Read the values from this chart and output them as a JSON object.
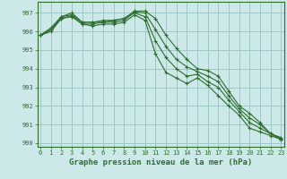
{
  "title": "Graphe pression niveau de la mer (hPa)",
  "background_color": "#cce8e8",
  "grid_color": "#a0c8c8",
  "line_color": "#2d6e2d",
  "x_values": [
    0,
    1,
    2,
    3,
    4,
    5,
    6,
    7,
    8,
    9,
    10,
    11,
    12,
    13,
    14,
    15,
    16,
    17,
    18,
    19,
    20,
    21,
    22,
    23
  ],
  "series": [
    [
      995.8,
      996.1,
      996.8,
      996.9,
      996.5,
      996.5,
      996.6,
      996.6,
      996.7,
      997.1,
      997.1,
      996.7,
      995.8,
      995.1,
      994.5,
      994.0,
      993.9,
      993.6,
      992.8,
      992.0,
      991.6,
      991.1,
      990.5,
      990.3
    ],
    [
      995.8,
      996.2,
      996.8,
      997.0,
      996.5,
      996.5,
      996.5,
      996.6,
      996.7,
      997.0,
      996.8,
      995.5,
      994.6,
      994.0,
      993.6,
      993.7,
      993.3,
      993.0,
      992.3,
      991.7,
      991.1,
      990.8,
      990.5,
      990.2
    ],
    [
      995.8,
      996.1,
      996.7,
      996.85,
      996.4,
      996.4,
      996.5,
      996.5,
      996.6,
      997.05,
      997.0,
      996.1,
      995.2,
      994.5,
      994.1,
      993.85,
      993.6,
      993.3,
      992.55,
      991.85,
      991.35,
      991.0,
      990.5,
      990.25
    ],
    [
      995.8,
      996.0,
      996.7,
      996.8,
      996.4,
      996.3,
      996.4,
      996.4,
      996.5,
      996.9,
      996.6,
      994.8,
      993.8,
      993.5,
      993.2,
      993.5,
      993.1,
      992.55,
      992.0,
      991.5,
      990.8,
      990.6,
      990.4,
      990.2
    ]
  ],
  "ylim": [
    989.8,
    997.6
  ],
  "yticks": [
    990,
    991,
    992,
    993,
    994,
    995,
    996,
    997
  ],
  "xlim": [
    -0.3,
    23.3
  ],
  "xticks": [
    0,
    1,
    2,
    3,
    4,
    5,
    6,
    7,
    8,
    9,
    10,
    11,
    12,
    13,
    14,
    15,
    16,
    17,
    18,
    19,
    20,
    21,
    22,
    23
  ],
  "marker": "+",
  "marker_size": 3.5,
  "line_width": 0.8,
  "title_fontsize": 6.5,
  "tick_fontsize": 5.0
}
